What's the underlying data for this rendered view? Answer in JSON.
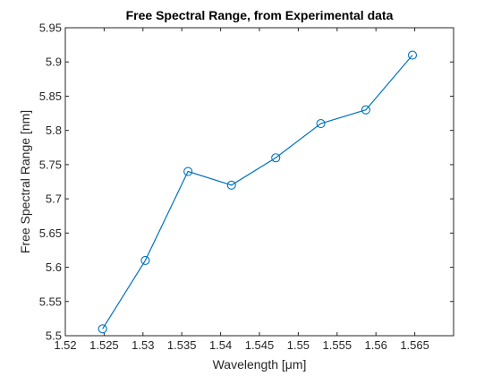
{
  "chart_data": {
    "type": "line",
    "title": "Free Spectral Range, from Experimental data",
    "xlabel": "Wavelength [μm]",
    "ylabel": "Free Spectral Range [nm]",
    "xlim": [
      1.52,
      1.57
    ],
    "ylim": [
      5.5,
      5.95
    ],
    "x_ticks": [
      1.52,
      1.525,
      1.53,
      1.535,
      1.54,
      1.545,
      1.55,
      1.555,
      1.56,
      1.565
    ],
    "x_tick_labels": [
      "1.52",
      "1.525",
      "1.53",
      "1.535",
      "1.54",
      "1.545",
      "1.55",
      "1.555",
      "1.56",
      "1.565"
    ],
    "y_ticks": [
      5.5,
      5.55,
      5.6,
      5.65,
      5.7,
      5.75,
      5.8,
      5.85,
      5.9,
      5.95
    ],
    "y_tick_labels": [
      "5.5",
      "5.55",
      "5.6",
      "5.65",
      "5.7",
      "5.75",
      "5.8",
      "5.85",
      "5.9",
      "5.95"
    ],
    "grid": false,
    "marker": "circle",
    "series": [
      {
        "x": [
          1.5248,
          1.5303,
          1.5358,
          1.5414,
          1.5471,
          1.5529,
          1.5587,
          1.5647
        ],
        "y": [
          5.51,
          5.61,
          5.74,
          5.72,
          5.76,
          5.81,
          5.83,
          5.91
        ],
        "color": "#0072BD"
      }
    ]
  }
}
